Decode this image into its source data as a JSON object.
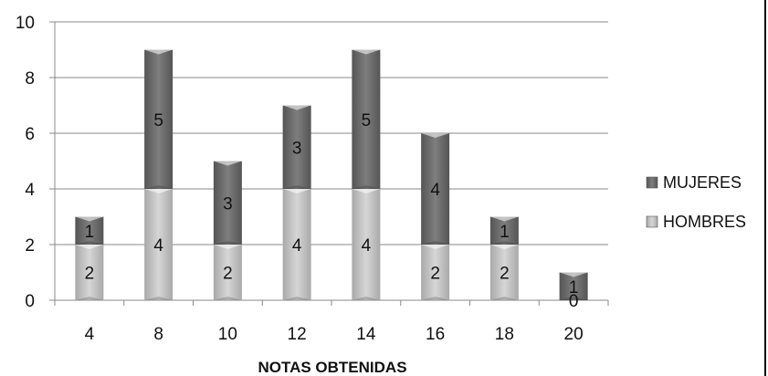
{
  "chart_data": {
    "type": "bar",
    "stacked": true,
    "categories": [
      "4",
      "8",
      "10",
      "12",
      "14",
      "16",
      "18",
      "20"
    ],
    "series": [
      {
        "name": "HOMBRES",
        "values": [
          2,
          4,
          2,
          4,
          4,
          2,
          2,
          0
        ],
        "color": "#c4c4c4"
      },
      {
        "name": "MUJERES",
        "values": [
          1,
          5,
          3,
          3,
          5,
          4,
          1,
          1
        ],
        "color": "#6e6e6e"
      }
    ],
    "xlabel": "NOTAS OBTENIDAS",
    "ylabel": "",
    "ylim": [
      0,
      10
    ],
    "yticks": [
      "0",
      "2",
      "4",
      "6",
      "8",
      "10"
    ],
    "grid": true,
    "legend_position": "right",
    "legend_order": [
      "MUJERES",
      "HOMBRES"
    ]
  }
}
